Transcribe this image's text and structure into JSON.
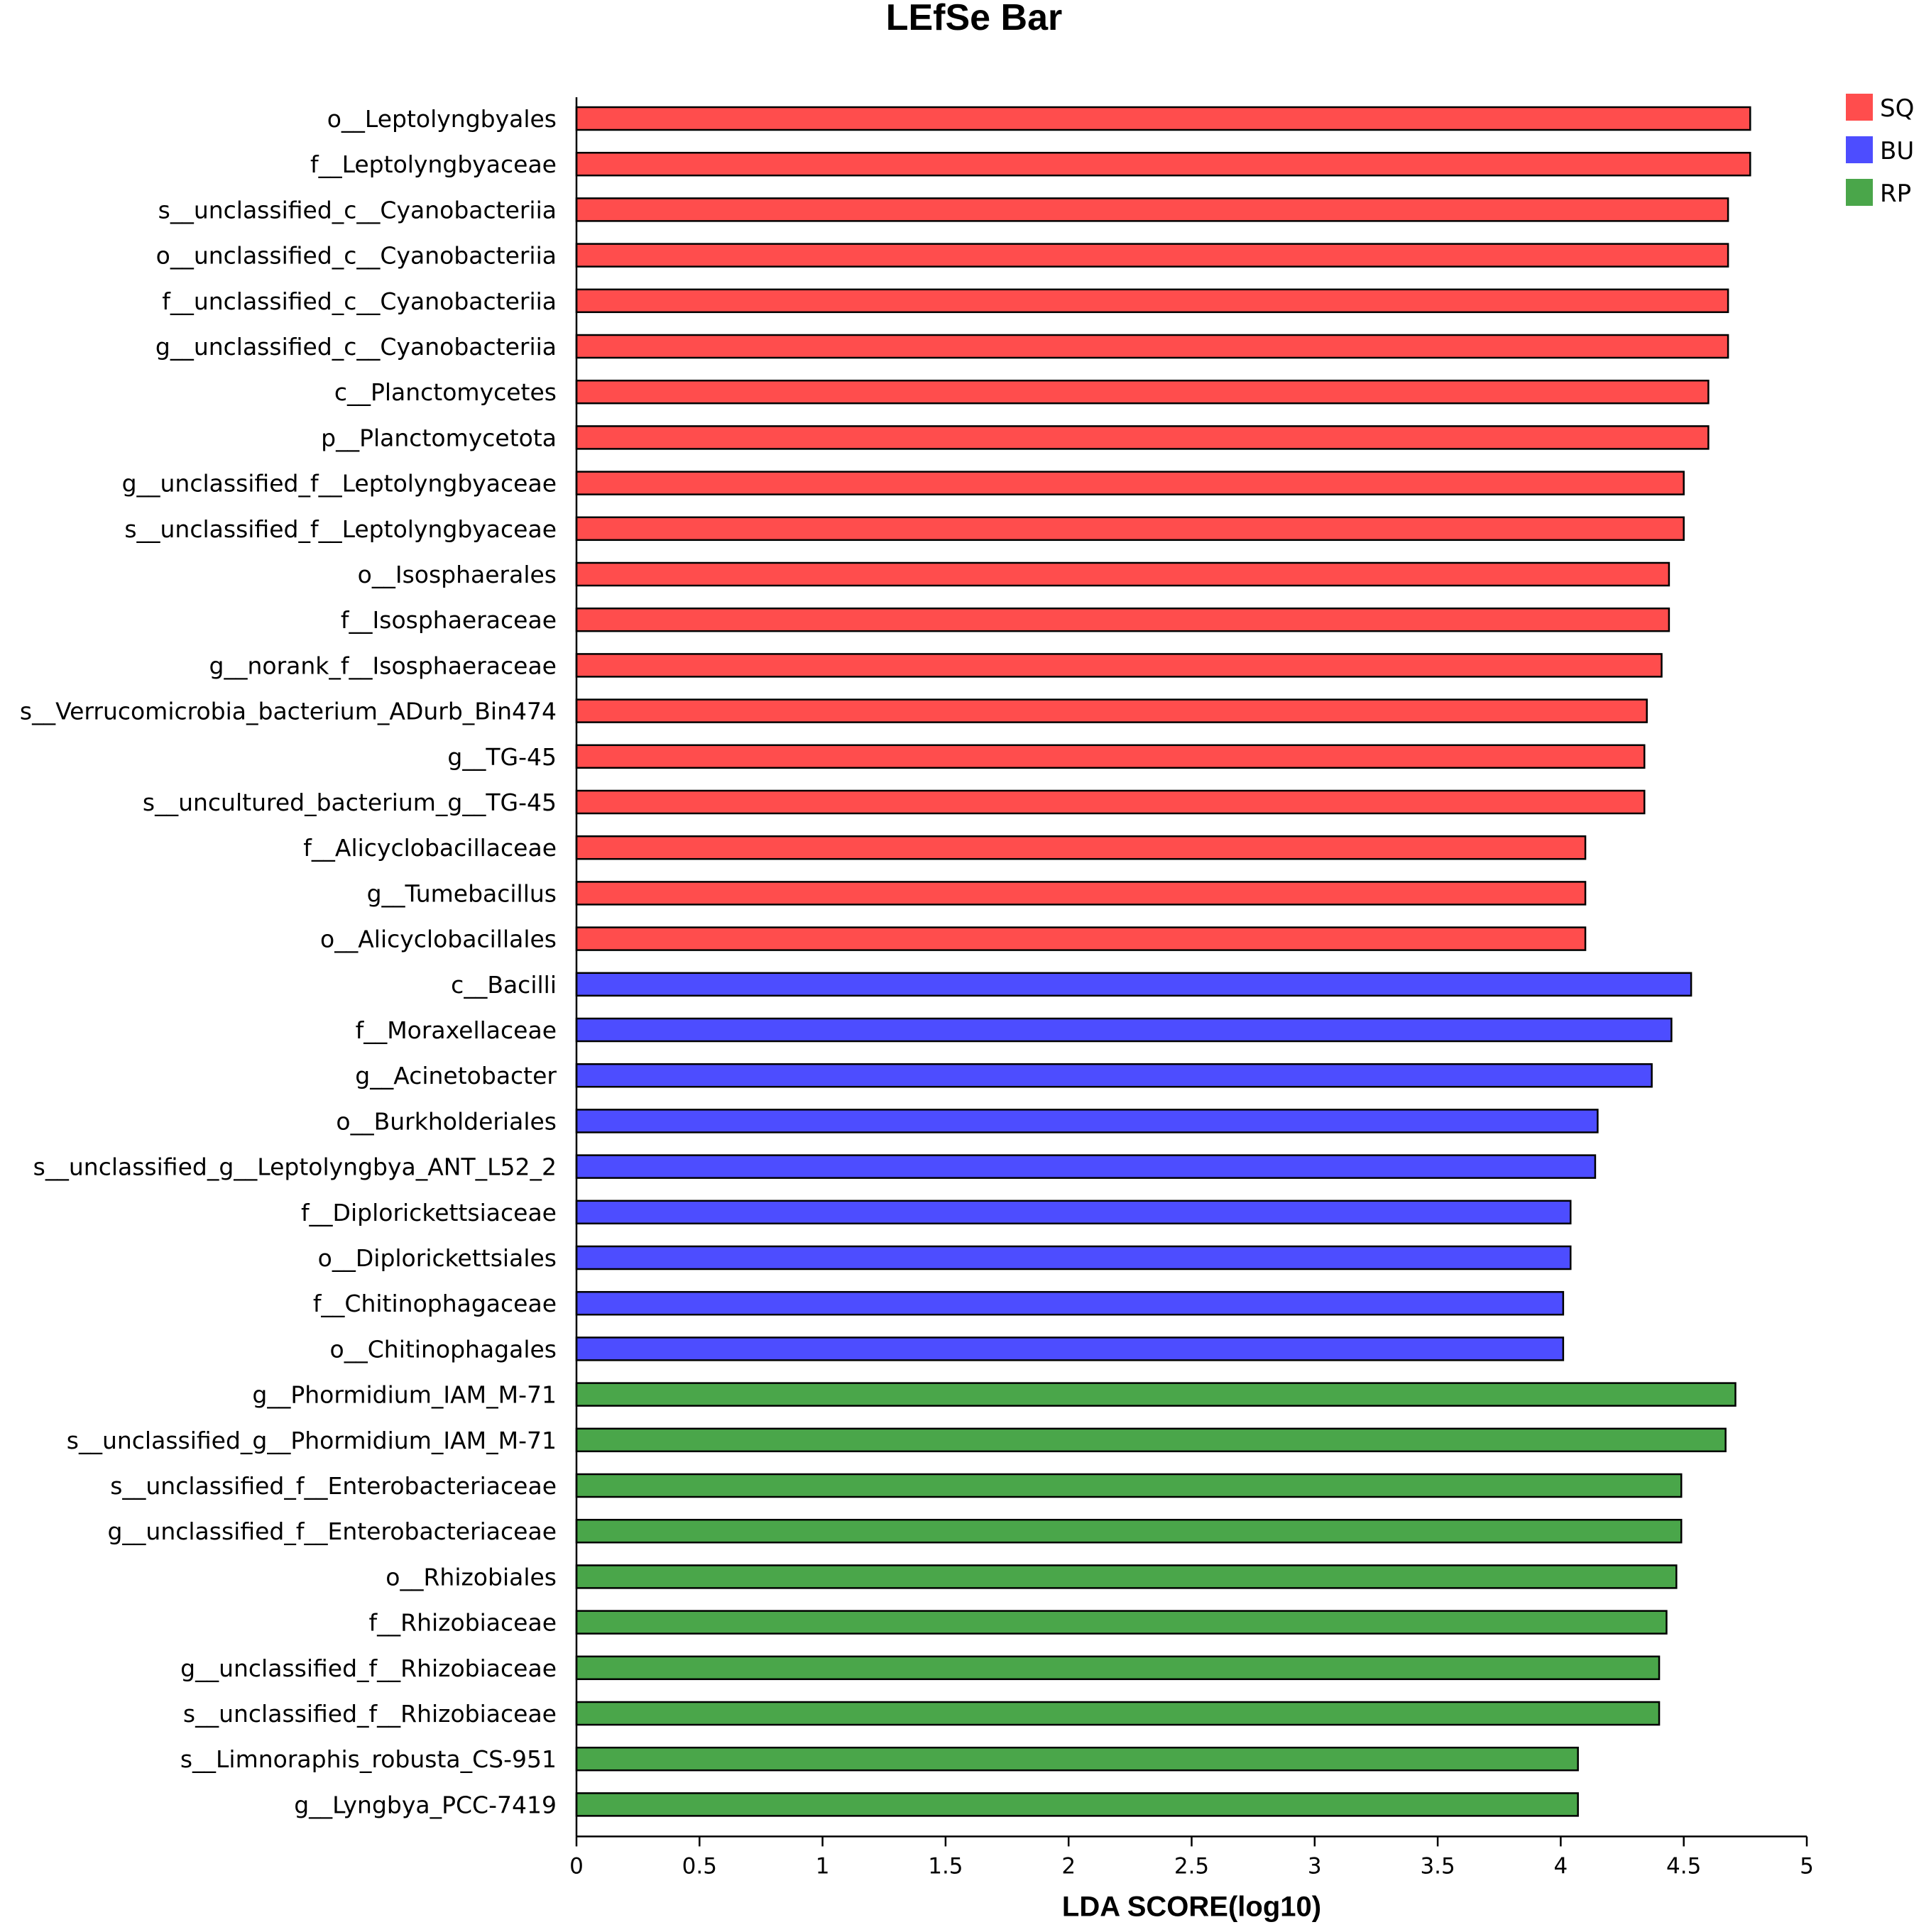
{
  "chart_data": {
    "type": "bar",
    "orientation": "horizontal",
    "title": "LEfSe Bar",
    "xlabel": "LDA SCORE(log10)",
    "ylabel": "",
    "xlim": [
      0,
      5
    ],
    "xticks": [
      "0",
      "0.5",
      "1",
      "1.5",
      "2",
      "2.5",
      "3",
      "3.5",
      "4",
      "4.5",
      "5"
    ],
    "grid": false,
    "legend_position": "top-right",
    "groups": [
      {
        "name": "SQ",
        "color": "#ff4d4d"
      },
      {
        "name": "BU",
        "color": "#4d4dff"
      },
      {
        "name": "RP",
        "color": "#4aa64a"
      }
    ],
    "bars": [
      {
        "label": "o__Leptolyngbyales",
        "value": 4.77,
        "group": "SQ"
      },
      {
        "label": "f__Leptolyngbyaceae",
        "value": 4.77,
        "group": "SQ"
      },
      {
        "label": "s__unclassified_c__Cyanobacteriia",
        "value": 4.68,
        "group": "SQ"
      },
      {
        "label": "o__unclassified_c__Cyanobacteriia",
        "value": 4.68,
        "group": "SQ"
      },
      {
        "label": "f__unclassified_c__Cyanobacteriia",
        "value": 4.68,
        "group": "SQ"
      },
      {
        "label": "g__unclassified_c__Cyanobacteriia",
        "value": 4.68,
        "group": "SQ"
      },
      {
        "label": "c__Planctomycetes",
        "value": 4.6,
        "group": "SQ"
      },
      {
        "label": "p__Planctomycetota",
        "value": 4.6,
        "group": "SQ"
      },
      {
        "label": "g__unclassified_f__Leptolyngbyaceae",
        "value": 4.5,
        "group": "SQ"
      },
      {
        "label": "s__unclassified_f__Leptolyngbyaceae",
        "value": 4.5,
        "group": "SQ"
      },
      {
        "label": "o__Isosphaerales",
        "value": 4.44,
        "group": "SQ"
      },
      {
        "label": "f__Isosphaeraceae",
        "value": 4.44,
        "group": "SQ"
      },
      {
        "label": "g__norank_f__Isosphaeraceae",
        "value": 4.41,
        "group": "SQ"
      },
      {
        "label": "s__Verrucomicrobia_bacterium_ADurb_Bin474",
        "value": 4.35,
        "group": "SQ"
      },
      {
        "label": "g__TG-45",
        "value": 4.34,
        "group": "SQ"
      },
      {
        "label": "s__uncultured_bacterium_g__TG-45",
        "value": 4.34,
        "group": "SQ"
      },
      {
        "label": "f__Alicyclobacillaceae",
        "value": 4.1,
        "group": "SQ"
      },
      {
        "label": "g__Tumebacillus",
        "value": 4.1,
        "group": "SQ"
      },
      {
        "label": "o__Alicyclobacillales",
        "value": 4.1,
        "group": "SQ"
      },
      {
        "label": "c__Bacilli",
        "value": 4.53,
        "group": "BU"
      },
      {
        "label": "f__Moraxellaceae",
        "value": 4.45,
        "group": "BU"
      },
      {
        "label": "g__Acinetobacter",
        "value": 4.37,
        "group": "BU"
      },
      {
        "label": "o__Burkholderiales",
        "value": 4.15,
        "group": "BU"
      },
      {
        "label": "s__unclassified_g__Leptolyngbya_ANT_L52_2",
        "value": 4.14,
        "group": "BU"
      },
      {
        "label": "f__Diplorickettsiaceae",
        "value": 4.04,
        "group": "BU"
      },
      {
        "label": "o__Diplorickettsiales",
        "value": 4.04,
        "group": "BU"
      },
      {
        "label": "f__Chitinophagaceae",
        "value": 4.01,
        "group": "BU"
      },
      {
        "label": "o__Chitinophagales",
        "value": 4.01,
        "group": "BU"
      },
      {
        "label": "g__Phormidium_IAM_M-71",
        "value": 4.71,
        "group": "RP"
      },
      {
        "label": "s__unclassified_g__Phormidium_IAM_M-71",
        "value": 4.67,
        "group": "RP"
      },
      {
        "label": "s__unclassified_f__Enterobacteriaceae",
        "value": 4.49,
        "group": "RP"
      },
      {
        "label": "g__unclassified_f__Enterobacteriaceae",
        "value": 4.49,
        "group": "RP"
      },
      {
        "label": "o__Rhizobiales",
        "value": 4.47,
        "group": "RP"
      },
      {
        "label": "f__Rhizobiaceae",
        "value": 4.43,
        "group": "RP"
      },
      {
        "label": "g__unclassified_f__Rhizobiaceae",
        "value": 4.4,
        "group": "RP"
      },
      {
        "label": "s__unclassified_f__Rhizobiaceae",
        "value": 4.4,
        "group": "RP"
      },
      {
        "label": "s__Limnoraphis_robusta_CS-951",
        "value": 4.07,
        "group": "RP"
      },
      {
        "label": "g__Lyngbya_PCC-7419",
        "value": 4.07,
        "group": "RP"
      }
    ]
  }
}
